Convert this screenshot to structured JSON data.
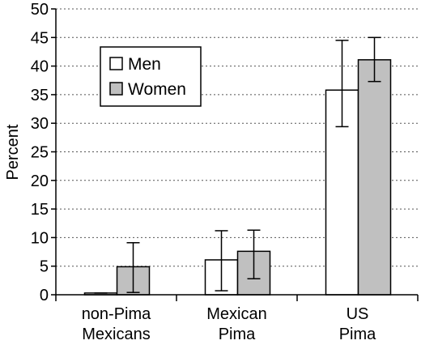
{
  "chart_data": {
    "type": "bar",
    "categories": [
      [
        "non-Pima",
        "Mexicans"
      ],
      [
        "Mexican",
        "Pima"
      ],
      [
        "US",
        "Pima"
      ]
    ],
    "series": [
      {
        "name": "Men",
        "color": "#ffffff",
        "values": [
          0.3,
          6.1,
          35.8
        ],
        "err_low": [
          0.3,
          0.7,
          29.4
        ],
        "err_high": [
          0.3,
          11.2,
          44.5
        ]
      },
      {
        "name": "Women",
        "color": "#c0c0c0",
        "values": [
          4.9,
          7.6,
          41.1
        ],
        "err_low": [
          0.4,
          2.8,
          37.3
        ],
        "err_high": [
          9.1,
          11.3,
          45.0
        ]
      }
    ],
    "ylabel": "Percent",
    "xlabel": "",
    "title": "",
    "ylim": [
      0,
      50
    ],
    "yticks": [
      0,
      5,
      10,
      15,
      20,
      25,
      30,
      35,
      40,
      45,
      50
    ],
    "grid": "horizontal dotted",
    "legend_position": "top-left"
  }
}
